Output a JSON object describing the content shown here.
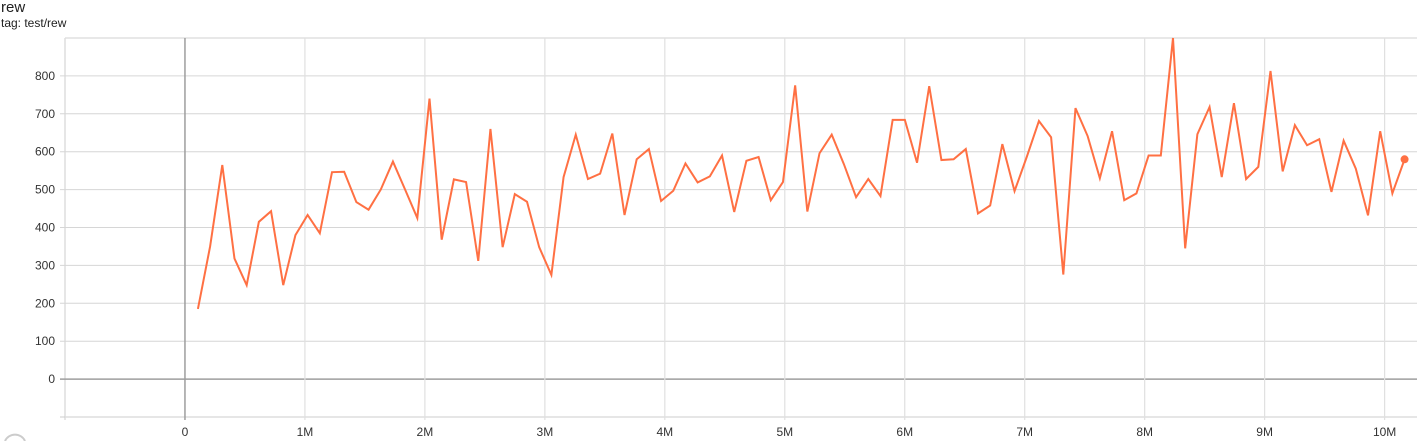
{
  "header": {
    "title": "rew",
    "tag": "tag: test/rew"
  },
  "chart_data": {
    "type": "line",
    "title": "rew",
    "subtitle": "tag: test/rew",
    "xlabel": "",
    "ylabel": "",
    "xlim": [
      -1000000,
      10270000
    ],
    "ylim": [
      -100,
      900
    ],
    "grid": true,
    "x_ticks": [
      {
        "v": 0,
        "label": "0"
      },
      {
        "v": 1000000,
        "label": "1M"
      },
      {
        "v": 2000000,
        "label": "2M"
      },
      {
        "v": 3000000,
        "label": "3M"
      },
      {
        "v": 4000000,
        "label": "4M"
      },
      {
        "v": 5000000,
        "label": "5M"
      },
      {
        "v": 6000000,
        "label": "6M"
      },
      {
        "v": 7000000,
        "label": "7M"
      },
      {
        "v": 8000000,
        "label": "8M"
      },
      {
        "v": 9000000,
        "label": "9M"
      },
      {
        "v": 10000000,
        "label": "10M"
      }
    ],
    "y_ticks": [
      {
        "v": 0,
        "label": "0"
      },
      {
        "v": 100,
        "label": "100"
      },
      {
        "v": 200,
        "label": "200"
      },
      {
        "v": 300,
        "label": "300"
      },
      {
        "v": 400,
        "label": "400"
      },
      {
        "v": 500,
        "label": "500"
      },
      {
        "v": 600,
        "label": "600"
      },
      {
        "v": 700,
        "label": "700"
      },
      {
        "v": 800,
        "label": "800"
      }
    ],
    "series": [
      {
        "color": "#ff7043",
        "x_start": 108000,
        "x_step": 101600,
        "values": [
          185,
          350,
          565,
          318,
          248,
          415,
          443,
          248,
          380,
          433,
          385,
          546,
          547,
          467,
          447,
          500,
          574,
          500,
          425,
          740,
          368,
          527,
          520,
          312,
          660,
          348,
          488,
          468,
          348,
          275,
          533,
          645,
          528,
          542,
          648,
          433,
          580,
          607,
          470,
          497,
          569,
          519,
          535,
          590,
          441,
          576,
          586,
          472,
          520,
          775,
          442,
          596,
          645,
          567,
          480,
          528,
          483,
          684,
          684,
          571,
          773,
          578,
          580,
          607,
          437,
          458,
          620,
          496,
          586,
          681,
          638,
          276,
          715,
          641,
          530,
          654,
          472,
          490,
          590,
          590,
          900,
          345,
          646,
          718,
          533,
          728,
          528,
          560,
          813,
          548,
          670,
          617,
          633,
          494,
          629,
          555,
          432,
          654,
          490,
          580
        ]
      }
    ]
  }
}
